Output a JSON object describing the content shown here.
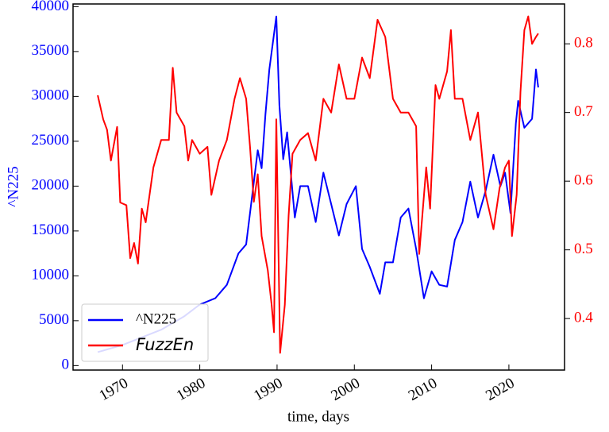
{
  "chart_data": {
    "type": "line",
    "xlabel": "time, days",
    "ylabel": "^N225",
    "xlim": [
      1963.6,
      2027.2
    ],
    "xticks": [
      1970,
      1980,
      1990,
      2000,
      2010,
      2020
    ],
    "ylim": [
      -500,
      40300
    ],
    "yticks": [
      0,
      5000,
      10000,
      15000,
      20000,
      25000,
      30000,
      35000,
      40000
    ],
    "y2lim": [
      0.325,
      0.858
    ],
    "y2ticks": [
      0.4,
      0.5,
      0.6,
      0.7,
      0.8
    ],
    "legend_loc": "lower left",
    "series": [
      {
        "name": "^N225",
        "color": "#0000ff",
        "x": [
          1966.8,
          1970,
          1975,
          1978,
          1980,
          1982,
          1983.5,
          1985,
          1986,
          1986.5,
          1987.5,
          1988,
          1988.5,
          1989,
          1989.9,
          1990.3,
          1990.8,
          1991.3,
          1992.3,
          1993,
          1994,
          1995,
          1996,
          1997,
          1998,
          1999,
          2000.2,
          2001,
          2002,
          2003.3,
          2004,
          2005,
          2006,
          2007,
          2008,
          2009,
          2010,
          2011,
          2012,
          2013,
          2014,
          2015,
          2016,
          2017,
          2018,
          2018.9,
          2019.5,
          2020.2,
          2020.9,
          2021.2,
          2022,
          2023,
          2023.5,
          2023.8
        ],
        "values": [
          1500,
          2300,
          4000,
          5500,
          6800,
          7500,
          9000,
          12500,
          13500,
          17000,
          24000,
          22000,
          28000,
          33000,
          38900,
          29000,
          23000,
          26000,
          16500,
          20000,
          20000,
          16000,
          21500,
          18000,
          14500,
          18000,
          20000,
          13000,
          11000,
          8000,
          11500,
          11500,
          16500,
          17500,
          13000,
          7500,
          10500,
          9000,
          8800,
          14000,
          16000,
          20500,
          16500,
          19500,
          23500,
          20000,
          21500,
          17000,
          27000,
          29500,
          26500,
          27500,
          33000,
          31000
        ]
      },
      {
        "name": "FuzzEn",
        "color": "#ff0000",
        "axis": "y2",
        "x": [
          1966.8,
          1967.5,
          1968,
          1968.5,
          1969.3,
          1969.7,
          1970.5,
          1971,
          1971.5,
          1972,
          1972.5,
          1973,
          1974,
          1975,
          1976,
          1976.5,
          1977,
          1978,
          1978.5,
          1979,
          1980,
          1981,
          1981.5,
          1982.5,
          1983.5,
          1984.5,
          1985.2,
          1986,
          1986.5,
          1987,
          1987.5,
          1988,
          1988.8,
          1989.3,
          1989.6,
          1989.9,
          1990.4,
          1991,
          1991.5,
          1992,
          1993,
          1994,
          1995,
          1996,
          1997,
          1998,
          1999,
          2000,
          2001,
          2002,
          2003,
          2004,
          2005,
          2006,
          2007,
          2008,
          2008.4,
          2009.3,
          2009.8,
          2010.5,
          2011,
          2012,
          2012.5,
          2013,
          2014,
          2015,
          2016,
          2017,
          2018,
          2018.8,
          2019.5,
          2020,
          2020.4,
          2021,
          2021.5,
          2022,
          2022.5,
          2023,
          2023.5,
          2023.8
        ],
        "values": [
          0.725,
          0.69,
          0.675,
          0.63,
          0.679,
          0.569,
          0.565,
          0.488,
          0.51,
          0.48,
          0.56,
          0.54,
          0.62,
          0.66,
          0.66,
          0.765,
          0.7,
          0.68,
          0.63,
          0.66,
          0.64,
          0.65,
          0.58,
          0.63,
          0.66,
          0.72,
          0.75,
          0.72,
          0.65,
          0.57,
          0.61,
          0.52,
          0.47,
          0.42,
          0.38,
          0.69,
          0.35,
          0.42,
          0.55,
          0.64,
          0.66,
          0.67,
          0.63,
          0.72,
          0.7,
          0.77,
          0.72,
          0.72,
          0.78,
          0.75,
          0.835,
          0.81,
          0.72,
          0.7,
          0.7,
          0.68,
          0.494,
          0.62,
          0.56,
          0.74,
          0.72,
          0.76,
          0.82,
          0.72,
          0.72,
          0.66,
          0.7,
          0.58,
          0.53,
          0.59,
          0.62,
          0.63,
          0.52,
          0.58,
          0.73,
          0.82,
          0.84,
          0.8,
          0.81,
          0.815
        ]
      }
    ]
  }
}
